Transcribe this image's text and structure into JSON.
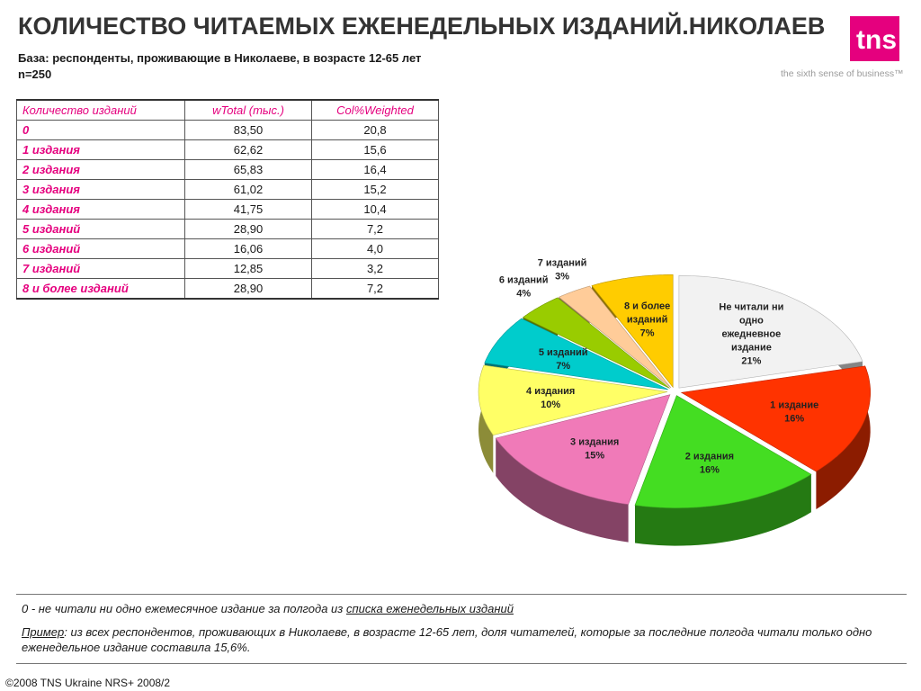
{
  "header": {
    "title": "КОЛИЧЕСТВО ЧИТАЕМЫХ ЕЖЕНЕДЕЛЬНЫХ ИЗДАНИЙ.НИКОЛАЕВ",
    "base_line1": "База: респонденты, проживающие в Николаеве, в возрасте 12-65 лет",
    "base_line2": "n=250"
  },
  "logo": {
    "text": "tns",
    "tagline": "the sixth sense of business™",
    "color": "#e5007e"
  },
  "table": {
    "headers": [
      "Количество изданий",
      "wTotal (тыс.)",
      "Col%Weighted"
    ],
    "rows": [
      {
        "label": "0",
        "total": "83,50",
        "pct": "20,8"
      },
      {
        "label": "1 издания",
        "total": "62,62",
        "pct": "15,6"
      },
      {
        "label": "2 издания",
        "total": "65,83",
        "pct": "16,4"
      },
      {
        "label": "3 издания",
        "total": "61,02",
        "pct": "15,2"
      },
      {
        "label": "4 издания",
        "total": "41,75",
        "pct": "10,4"
      },
      {
        "label": "5 изданий",
        "total": "28,90",
        "pct": "7,2"
      },
      {
        "label": "6 изданий",
        "total": "16,06",
        "pct": "4,0"
      },
      {
        "label": "7 изданий",
        "total": "12,85",
        "pct": "3,2"
      },
      {
        "label": "8 и более изданий",
        "total": "28,90",
        "pct": "7,2"
      }
    ]
  },
  "chart_data": {
    "type": "pie",
    "title": "",
    "slices": [
      {
        "label": "Не читали ни одно ежедневное издание",
        "display": "Не читали ни\nодно\nежедневное\nиздание\n21%",
        "value": 21,
        "color": "#f2f2f2"
      },
      {
        "label": "1 издание",
        "display": "1 издание\n16%",
        "value": 16,
        "color": "#ff3300"
      },
      {
        "label": "2 издания",
        "display": "2 издания\n16%",
        "value": 16,
        "color": "#44dd22"
      },
      {
        "label": "3 издания",
        "display": "3 издания\n15%",
        "value": 15,
        "color": "#f07ab8"
      },
      {
        "label": "4 издания",
        "display": "4 издания\n10%",
        "value": 10,
        "color": "#ffff66"
      },
      {
        "label": "5 изданий",
        "display": "5 изданий\n7%",
        "value": 7,
        "color": "#00cccc"
      },
      {
        "label": "6 изданий",
        "display": "6 изданий\n4%",
        "value": 4,
        "color": "#99cc00"
      },
      {
        "label": "7 изданий",
        "display": "7 изданий\n3%",
        "value": 3,
        "color": "#ffcc99"
      },
      {
        "label": "8 и более изданий",
        "display": "8 и более\nизданий\n7%",
        "value": 7,
        "color": "#ffcc00"
      }
    ]
  },
  "notes": {
    "note1_prefix": "0 - не читали ни одно ежемесячное издание за полгода из ",
    "note1_link": "списка еженедельных изданий",
    "note2_label": "Пример",
    "note2_text": ":  из всех респондентов, проживающих в Николаеве, в возрасте 12-65 лет, доля читателей, которые за последние полгода читали только одно еженедельное издание составила  15,6%."
  },
  "footer": {
    "text": "©2008 TNS Ukraine  NRS+ 2008/2"
  }
}
